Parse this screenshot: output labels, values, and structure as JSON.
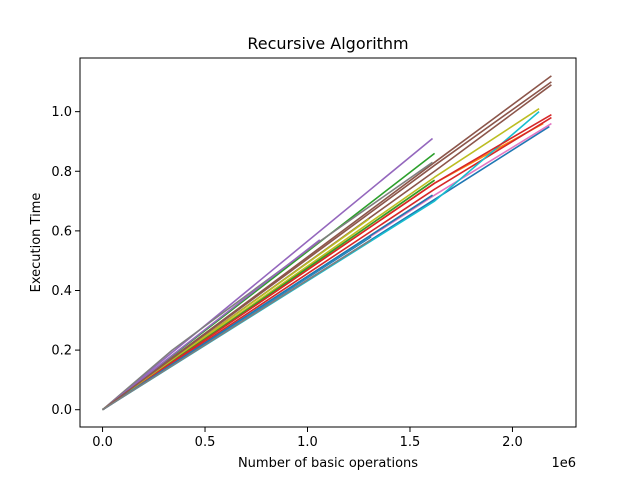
{
  "chart_data": {
    "type": "line",
    "title": "Recursive Algorithm",
    "xlabel": "Number of basic operations",
    "ylabel": "Execution Time",
    "x_offset_label": "1e6",
    "xlim": [
      -110000,
      2310000
    ],
    "ylim": [
      -0.058,
      1.18
    ],
    "x_ticks": [
      {
        "value": 0,
        "label": "0.0"
      },
      {
        "value": 500000,
        "label": "0.5"
      },
      {
        "value": 1000000,
        "label": "1.0"
      },
      {
        "value": 1500000,
        "label": "1.5"
      },
      {
        "value": 2000000,
        "label": "2.0"
      }
    ],
    "y_ticks": [
      {
        "value": 0.0,
        "label": "0.0"
      },
      {
        "value": 0.2,
        "label": "0.2"
      },
      {
        "value": 0.4,
        "label": "0.4"
      },
      {
        "value": 0.6,
        "label": "0.6"
      },
      {
        "value": 0.8,
        "label": "0.8"
      },
      {
        "value": 1.0,
        "label": "1.0"
      }
    ],
    "grid": false,
    "legend": "none",
    "series": [
      {
        "color": "#1f77b4",
        "x": [
          0,
          1310000,
          2180000
        ],
        "y": [
          0,
          0.57,
          0.95
        ]
      },
      {
        "color": "#ff7f0e",
        "x": [
          0,
          1620000,
          2150000
        ],
        "y": [
          0,
          0.76,
          0.96
        ]
      },
      {
        "color": "#2ca02c",
        "x": [
          0,
          1620000
        ],
        "y": [
          0,
          0.86
        ]
      },
      {
        "color": "#d62728",
        "x": [
          0,
          1620000,
          2190000
        ],
        "y": [
          0,
          0.74,
          0.98
        ]
      },
      {
        "color": "#9467bd",
        "x": [
          0,
          1610000
        ],
        "y": [
          0,
          0.91
        ]
      },
      {
        "color": "#8c564b",
        "x": [
          0,
          1620000,
          2190000
        ],
        "y": [
          0,
          0.83,
          1.12
        ]
      },
      {
        "color": "#e377c2",
        "x": [
          0,
          1620000,
          2190000
        ],
        "y": [
          0,
          0.72,
          0.96
        ]
      },
      {
        "color": "#7f7f7f",
        "x": [
          0,
          340000,
          1050000,
          1610000
        ],
        "y": [
          0,
          0.2,
          0.56,
          0.83
        ]
      },
      {
        "color": "#bcbd22",
        "x": [
          0,
          1620000,
          2130000
        ],
        "y": [
          0,
          0.78,
          1.01
        ]
      },
      {
        "color": "#17becf",
        "x": [
          0,
          1620000,
          2130000
        ],
        "y": [
          0,
          0.7,
          1.0
        ]
      },
      {
        "color": "#1f77b4",
        "x": [
          0,
          1310000
        ],
        "y": [
          0,
          0.58
        ]
      },
      {
        "color": "#ff7f0e",
        "x": [
          0,
          1620000
        ],
        "y": [
          0,
          0.77
        ]
      },
      {
        "color": "#2ca02c",
        "x": [
          0,
          1620000
        ],
        "y": [
          0,
          0.77
        ]
      },
      {
        "color": "#d62728",
        "x": [
          0,
          1620000,
          2190000
        ],
        "y": [
          0,
          0.76,
          0.99
        ]
      },
      {
        "color": "#9467bd",
        "x": [
          0,
          1060000
        ],
        "y": [
          0,
          0.57
        ]
      },
      {
        "color": "#8c564b",
        "x": [
          0,
          1620000,
          2190000
        ],
        "y": [
          0,
          0.8,
          1.09
        ]
      },
      {
        "color": "#e377c2",
        "x": [
          0,
          1300000
        ],
        "y": [
          0,
          0.58
        ]
      },
      {
        "color": "#7f7f7f",
        "x": [
          0,
          1610000
        ],
        "y": [
          0,
          0.72
        ]
      },
      {
        "color": "#bcbd22",
        "x": [
          0,
          1300000
        ],
        "y": [
          0,
          0.64
        ]
      },
      {
        "color": "#17becf",
        "x": [
          0,
          1300000
        ],
        "y": [
          0,
          0.58
        ]
      },
      {
        "color": "#1f77b4",
        "x": [
          0,
          1610000
        ],
        "y": [
          0,
          0.72
        ]
      },
      {
        "color": "#8c564b",
        "x": [
          0,
          1620000,
          2190000
        ],
        "y": [
          0,
          0.82,
          1.1
        ]
      },
      {
        "color": "#7f7f7f",
        "x": [
          0,
          1310000
        ],
        "y": [
          0,
          0.57
        ]
      }
    ]
  }
}
